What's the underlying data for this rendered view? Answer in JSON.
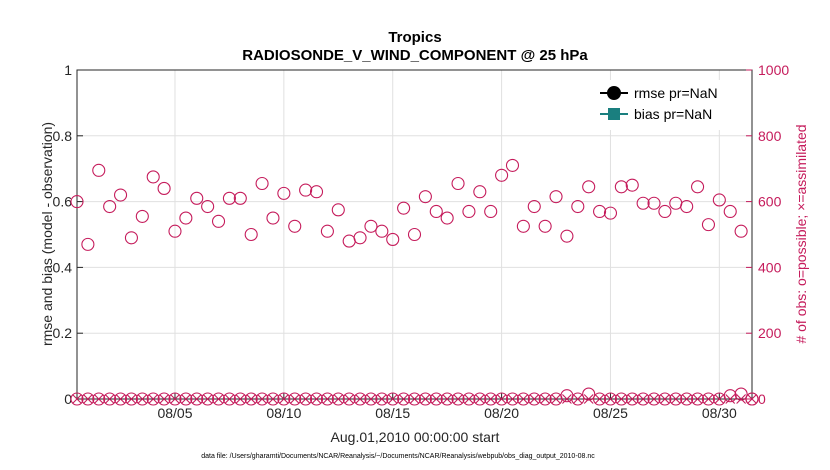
{
  "chart_data": {
    "type": "scatter",
    "title": "Tropics",
    "subtitle": "RADIOSONDE_V_WIND_COMPONENT @ 25 hPa",
    "xlabel": "Aug.01,2010 00:00:00 start",
    "ylabel_left": "rmse and bias (model - observation)",
    "ylabel_right": "# of obs: o=possible; ×=assimilated",
    "footnote": "data file: /Users/gharamti/Documents/NCAR/Reanalysis/~/Documents/NCAR/Reanalysis/webpub/obs_diag_output_2010-08.nc",
    "xlim": [
      0.5,
      31.5
    ],
    "ylim_left": [
      0,
      1
    ],
    "ylim_right": [
      0,
      1000
    ],
    "grid": true,
    "x_ticks": [
      {
        "value": 5,
        "label": "08/05"
      },
      {
        "value": 10,
        "label": "08/10"
      },
      {
        "value": 15,
        "label": "08/15"
      },
      {
        "value": 20,
        "label": "08/20"
      },
      {
        "value": 25,
        "label": "08/25"
      },
      {
        "value": 30,
        "label": "08/30"
      }
    ],
    "y_ticks_left": [
      {
        "value": 0,
        "label": "0"
      },
      {
        "value": 0.2,
        "label": "0.2"
      },
      {
        "value": 0.4,
        "label": "0.4"
      },
      {
        "value": 0.6,
        "label": "0.6"
      },
      {
        "value": 0.8,
        "label": "0.8"
      },
      {
        "value": 1,
        "label": "1"
      }
    ],
    "y_ticks_right": [
      {
        "value": 0,
        "label": "0"
      },
      {
        "value": 200,
        "label": "200"
      },
      {
        "value": 400,
        "label": "400"
      },
      {
        "value": 600,
        "label": "600"
      },
      {
        "value": 800,
        "label": "800"
      },
      {
        "value": 1000,
        "label": "1000"
      }
    ],
    "legend": {
      "position": "top-right",
      "entries": [
        {
          "name": "rmse pr=NaN",
          "color": "#000000",
          "marker": "circle"
        },
        {
          "name": "bias pr=NaN",
          "color": "#1a7f7f",
          "marker": "square"
        }
      ]
    },
    "series": [
      {
        "name": "possible",
        "axis": "right",
        "marker": "open-circle",
        "color": "#c51b5b",
        "x": [
          0.5,
          1,
          1.5,
          2,
          2.5,
          3,
          3.5,
          4,
          4.5,
          5,
          5.5,
          6,
          6.5,
          7,
          7.5,
          8,
          8.5,
          9,
          9.5,
          10,
          10.5,
          11,
          11.5,
          12,
          12.5,
          13,
          13.5,
          14,
          14.5,
          15,
          15.5,
          16,
          16.5,
          17,
          17.5,
          18,
          18.5,
          19,
          19.5,
          20,
          20.5,
          21,
          21.5,
          22,
          22.5,
          23,
          23.5,
          24,
          24.5,
          25,
          25.5,
          26,
          26.5,
          27,
          27.5,
          28,
          28.5,
          29,
          29.5,
          30,
          30.5,
          31,
          31.5
        ],
        "y": [
          600,
          470,
          695,
          585,
          620,
          490,
          555,
          675,
          640,
          510,
          550,
          610,
          585,
          540,
          610,
          610,
          500,
          655,
          550,
          625,
          525,
          635,
          630,
          510,
          575,
          480,
          490,
          525,
          510,
          485,
          580,
          500,
          615,
          570,
          550,
          655,
          570,
          630,
          570,
          680,
          710,
          525,
          585,
          525,
          615,
          495,
          585,
          645,
          570,
          565,
          645,
          650,
          595,
          595,
          570,
          595,
          585,
          645,
          530,
          605,
          570,
          510,
          0
        ]
      },
      {
        "name": "assimilated",
        "axis": "right",
        "marker": "x",
        "color": "#c51b5b",
        "x": [
          0.5,
          1,
          1.5,
          2,
          2.5,
          3,
          3.5,
          4,
          4.5,
          5,
          5.5,
          6,
          6.5,
          7,
          7.5,
          8,
          8.5,
          9,
          9.5,
          10,
          10.5,
          11,
          11.5,
          12,
          12.5,
          13,
          13.5,
          14,
          14.5,
          15,
          15.5,
          16,
          16.5,
          17,
          17.5,
          18,
          18.5,
          19,
          19.5,
          20,
          20.5,
          21,
          21.5,
          22,
          22.5,
          23,
          23.5,
          24,
          24.5,
          25,
          25.5,
          26,
          26.5,
          27,
          27.5,
          28,
          28.5,
          29,
          29.5,
          30,
          30.5,
          31,
          31.5
        ],
        "y": [
          0,
          0,
          0,
          0,
          0,
          0,
          0,
          0,
          0,
          0,
          0,
          0,
          0,
          0,
          0,
          0,
          0,
          0,
          0,
          0,
          0,
          0,
          0,
          0,
          0,
          0,
          0,
          0,
          0,
          0,
          0,
          0,
          0,
          0,
          0,
          0,
          0,
          0,
          0,
          0,
          0,
          0,
          0,
          0,
          0,
          0,
          0,
          0,
          0,
          0,
          0,
          0,
          0,
          0,
          0,
          0,
          0,
          0,
          0,
          0,
          0,
          0,
          0
        ]
      },
      {
        "name": "possible-near-zero",
        "axis": "right",
        "marker": "open-circle",
        "color": "#c51b5b",
        "x": [
          0.5,
          1,
          1.5,
          2,
          2.5,
          3,
          3.5,
          4,
          4.5,
          5,
          5.5,
          6,
          6.5,
          7,
          7.5,
          8,
          8.5,
          9,
          9.5,
          10,
          10.5,
          11,
          11.5,
          12,
          12.5,
          13,
          13.5,
          14,
          14.5,
          15,
          15.5,
          16,
          16.5,
          17,
          17.5,
          18,
          18.5,
          19,
          19.5,
          20,
          20.5,
          21,
          21.5,
          22,
          22.5,
          23,
          23.5,
          24,
          24.5,
          25,
          25.5,
          26,
          26.5,
          27,
          27.5,
          28,
          28.5,
          29,
          29.5,
          30,
          30.5,
          31,
          31.5
        ],
        "y": [
          0,
          0,
          0,
          0,
          0,
          0,
          0,
          0,
          0,
          0,
          0,
          0,
          0,
          0,
          0,
          0,
          0,
          0,
          0,
          0,
          0,
          0,
          0,
          0,
          0,
          0,
          0,
          0,
          0,
          0,
          0,
          0,
          0,
          0,
          0,
          0,
          0,
          0,
          0,
          0,
          0,
          0,
          0,
          0,
          0,
          10,
          0,
          15,
          0,
          0,
          0,
          0,
          0,
          0,
          0,
          0,
          0,
          0,
          0,
          0,
          10,
          15,
          0
        ]
      }
    ]
  },
  "colors": {
    "accent": "#c51b5b",
    "bias": "#1a7f7f"
  }
}
